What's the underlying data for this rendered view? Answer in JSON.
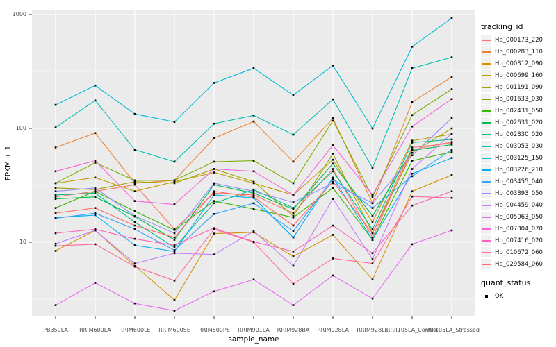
{
  "chart_data": {
    "type": "line",
    "title": "",
    "xlabel": "sample_name",
    "ylabel": "FPKM + 1",
    "y_scale": "log10",
    "ylim": [
      2.2,
      1100
    ],
    "y_ticks": [
      1000,
      100,
      10
    ],
    "y_tick_labels": [
      "1000",
      "100",
      "10"
    ],
    "y_minor_gridlines": [
      316.2,
      31.62,
      3.162
    ],
    "grid": "on",
    "panel_bg": "#EBEBEB",
    "grid_color": "#FFFFFF",
    "point_marker": "black-square",
    "legend_position": "right",
    "categories": [
      "PB350LA",
      "RRIM600LA",
      "RRIM600LE",
      "RRIM600SE",
      "RRIM600PE",
      "RRIM901LA",
      "RRIM928BA",
      "RRIM928LA",
      "RRIM928LE",
      "RRII105LA_Control",
      "RRII105LA_Stressed"
    ],
    "series": [
      {
        "name": "Hb_000173_220",
        "color": "#F8766D",
        "values": [
          25,
          28,
          32,
          13,
          27,
          26,
          18,
          44,
          11,
          65,
          76
        ]
      },
      {
        "name": "Hb_000283_110",
        "color": "#EA8331",
        "values": [
          68,
          91,
          33,
          35,
          82,
          115,
          51,
          123,
          22,
          170,
          284
        ]
      },
      {
        "name": "Hb_000312_090",
        "color": "#D89000",
        "values": [
          8.4,
          12.7,
          6.2,
          3.1,
          11.9,
          12.2,
          7.5,
          11.6,
          4.7,
          28,
          39
        ]
      },
      {
        "name": "Hb_000699_160",
        "color": "#C09B00",
        "values": [
          33,
          37,
          28,
          34,
          41,
          33,
          26,
          53,
          15,
          78,
          89
        ]
      },
      {
        "name": "Hb_001191_090",
        "color": "#A3A500",
        "values": [
          30,
          29,
          34,
          33,
          44,
          34,
          17,
          60,
          12,
          61,
          100
        ]
      },
      {
        "name": "Hb_001633_030",
        "color": "#7CAE00",
        "values": [
          33,
          50,
          35,
          35,
          51,
          52,
          33,
          117,
          25,
          131,
          221
        ]
      },
      {
        "name": "Hb_002431_050",
        "color": "#39B600",
        "values": [
          20,
          28,
          18.7,
          12.8,
          23,
          19.6,
          16.5,
          30,
          10.5,
          52,
          62
        ]
      },
      {
        "name": "Hb_002631_020",
        "color": "#00BB4E",
        "values": [
          24,
          25,
          16.8,
          10.5,
          32,
          27,
          19.5,
          49,
          17,
          64,
          72
        ]
      },
      {
        "name": "Hb_002830_020",
        "color": "#00C087",
        "values": [
          26,
          27,
          15,
          9,
          22,
          29,
          20,
          42,
          13,
          75,
          80
        ]
      },
      {
        "name": "Hb_003053_030",
        "color": "#00C0B2",
        "values": [
          102,
          176,
          65,
          51,
          110,
          130,
          88,
          180,
          45,
          338,
          421
        ]
      },
      {
        "name": "Hb_003125_150",
        "color": "#00BCD8",
        "values": [
          161,
          238,
          134,
          114,
          251,
          338,
          196,
          357,
          100,
          522,
          932
        ]
      },
      {
        "name": "Hb_003226_210",
        "color": "#00B0F6",
        "values": [
          16.5,
          17.3,
          9.4,
          8.3,
          26,
          24.5,
          11,
          37,
          10.5,
          40,
          55
        ]
      },
      {
        "name": "Hb_003455_040",
        "color": "#35A2FF",
        "values": [
          16.2,
          18,
          13,
          8.5,
          17.7,
          22,
          12.5,
          36,
          20,
          38,
          65
        ]
      },
      {
        "name": "Hb_003893_050",
        "color": "#9590FF",
        "values": [
          28,
          30,
          17,
          12,
          33,
          28,
          22.4,
          33,
          22,
          58,
          123
        ]
      },
      {
        "name": "Hb_004459_040",
        "color": "#C77CFF",
        "values": [
          9.7,
          12.7,
          6.5,
          8,
          7.8,
          12.5,
          6.2,
          24,
          7.1,
          44,
          90
        ]
      },
      {
        "name": "Hb_005063_050",
        "color": "#E76BF3",
        "values": [
          2.8,
          4.4,
          2.9,
          2.5,
          3.7,
          4.7,
          2.8,
          5.1,
          3.2,
          9.6,
          12.7
        ]
      },
      {
        "name": "Hb_007304_070",
        "color": "#FA62DB",
        "values": [
          42,
          52,
          23,
          21.5,
          44,
          42,
          26,
          71,
          26,
          104,
          181
        ]
      },
      {
        "name": "Hb_007416_020",
        "color": "#FF62BC",
        "values": [
          12,
          13,
          10.7,
          9.4,
          13.3,
          10.1,
          8.3,
          14,
          8,
          21,
          28
        ]
      },
      {
        "name": "Hb_010672_060",
        "color": "#FF6A98",
        "values": [
          9.3,
          9.6,
          6.1,
          4.6,
          13,
          10,
          4.3,
          7.2,
          6.5,
          25.2,
          24.5
        ]
      },
      {
        "name": "Hb_029584_060",
        "color": "#FF6C67",
        "values": [
          18,
          20,
          14,
          11,
          28,
          25,
          14,
          34,
          12,
          68,
          74
        ]
      }
    ]
  },
  "legend": {
    "tracking": {
      "title": "tracking_id"
    },
    "quant": {
      "title": "quant_status",
      "items": [
        {
          "label": "OK",
          "marker": "black-square"
        }
      ]
    }
  }
}
